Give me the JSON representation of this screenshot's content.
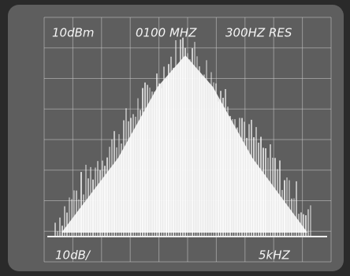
{
  "display": {
    "top_left": "10dBm",
    "top_center": "0100 MHZ",
    "top_right": "300HZ RES",
    "bottom_left": "10dB/",
    "bottom_right": "5kHZ"
  }
}
